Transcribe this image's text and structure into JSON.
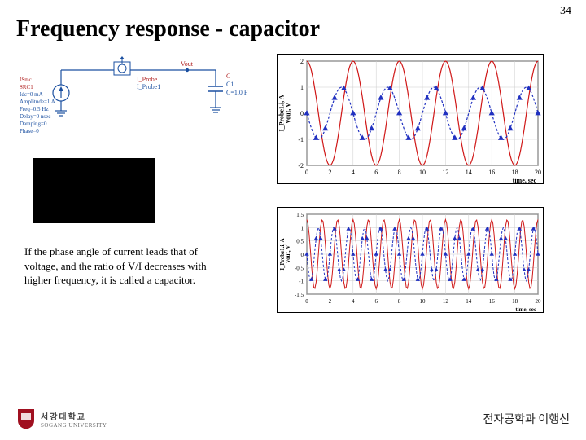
{
  "page_number": "34",
  "title": "Frequency response - capacitor",
  "circuit": {
    "source_label_lines": [
      "ISmc",
      "SRC1",
      "Idc=0 mA",
      "Amplitude=1 A",
      "Freq=0.5 Hz",
      "Delay=0 nsec",
      "Damping=0",
      "Phase=0"
    ],
    "probe_label": "I_Probe",
    "probe_id": "I_Probe1",
    "vout_label": "Vout",
    "cap_label": "C",
    "cap_id": "C1",
    "cap_value": "C=1.0 F",
    "wire_color": "#1a4fa0",
    "label_color": "#b02020",
    "value_color": "#1a4fa0"
  },
  "chart1": {
    "type": "line",
    "xlabel": "time, sec",
    "ylabel": "I_Probe1.i, A\nVout, V",
    "xlim": [
      0,
      20
    ],
    "ylim": [
      -2,
      2
    ],
    "xticks": [
      0,
      2,
      4,
      6,
      8,
      10,
      12,
      14,
      16,
      18,
      20
    ],
    "yticks": [
      -2,
      -1,
      0,
      1,
      2
    ],
    "background_color": "#ffffff",
    "grid_color": "#cccccc",
    "axis_color": "#000000",
    "label_fontsize": 8,
    "series": [
      {
        "name": "Vout",
        "color": "#d01818",
        "dash": "none",
        "width": 1.2,
        "amplitude": 2.0,
        "freq_hz": 0.25,
        "phase_deg": 90,
        "marker": null
      },
      {
        "name": "I_Probe1.i",
        "color": "#2030c0",
        "dash": "3,2",
        "width": 1.2,
        "amplitude": 1.0,
        "freq_hz": 0.25,
        "phase_deg": 180,
        "marker": "triangle",
        "marker_color": "#2030c0",
        "marker_size": 4,
        "marker_stride": 8
      }
    ]
  },
  "chart2": {
    "type": "line",
    "xlabel": "time, sec",
    "ylabel": "I_Probe1.i, A\nVout, V",
    "xlim": [
      0,
      20
    ],
    "ylim": [
      -1.5,
      1.5
    ],
    "xticks": [
      0,
      2,
      4,
      6,
      8,
      10,
      12,
      14,
      16,
      18,
      20
    ],
    "yticks": [
      -1.5,
      -1.0,
      -0.5,
      0.0,
      0.5,
      1.0,
      1.5
    ],
    "background_color": "#ffffff",
    "grid_color": "#cccccc",
    "axis_color": "#000000",
    "label_fontsize": 7,
    "series": [
      {
        "name": "Vout",
        "color": "#d01818",
        "dash": "none",
        "width": 1.0,
        "amplitude": 1.3,
        "freq_hz": 0.75,
        "phase_deg": 90,
        "marker": null
      },
      {
        "name": "I_Probe1.i",
        "color": "#2030c0",
        "dash": "3,2",
        "width": 1.0,
        "amplitude": 1.0,
        "freq_hz": 0.75,
        "phase_deg": 180,
        "marker": "triangle",
        "marker_color": "#2030c0",
        "marker_size": 3,
        "marker_stride": 4
      }
    ]
  },
  "description": "If the phase angle of current leads that of voltage, and the ratio of V/I decreases with higher frequency, it is called a capacitor.",
  "footer": {
    "logo_main": "서강대학교",
    "logo_sub": "SOGANG UNIVERSITY",
    "logo_shield_color": "#a01020",
    "right_text": "전자공학과 이행선"
  }
}
